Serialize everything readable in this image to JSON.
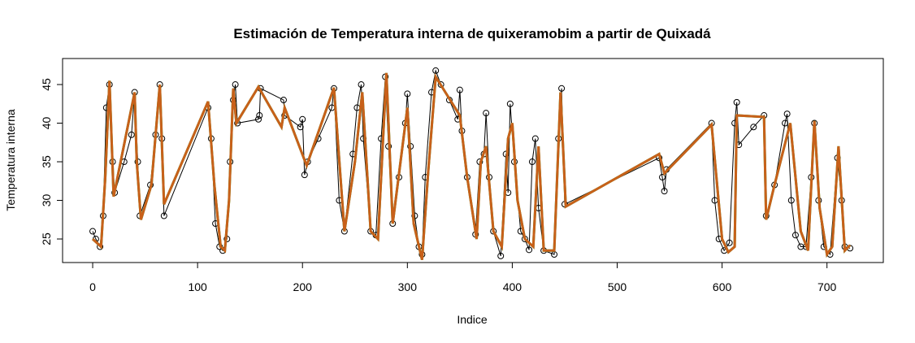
{
  "chart_data": {
    "type": "line",
    "title": "Estimación de Temperatura interna de quixeramobim a partir de Quixadá",
    "x_label": "Indice",
    "y_label": "Temperatura interna",
    "xlim": [
      -28.7,
      753.7
    ],
    "ylim": [
      21.95,
      48.37
    ],
    "xticks": [
      0,
      100,
      200,
      300,
      400,
      500,
      600,
      700
    ],
    "yticks": [
      25,
      30,
      35,
      40,
      45
    ],
    "series": [
      {
        "color": "#000000",
        "marker": "circle",
        "x": [
          0,
          3,
          7,
          10,
          13,
          16,
          19,
          21,
          30,
          37,
          40,
          43,
          45,
          55,
          60,
          64,
          66,
          68,
          110,
          113,
          117,
          121,
          124,
          128,
          131,
          134,
          136,
          138,
          158,
          159,
          160,
          182,
          183,
          198,
          200,
          202,
          205,
          215,
          228,
          230,
          235,
          240,
          248,
          252,
          256,
          258,
          265,
          270,
          275,
          279,
          282,
          286,
          292,
          298,
          300,
          303,
          307,
          311,
          314,
          317,
          323,
          327,
          332,
          340,
          348,
          350,
          352,
          357,
          365,
          369,
          373,
          375,
          378,
          382,
          389,
          394,
          396,
          398,
          402,
          408,
          412,
          416,
          419,
          422,
          425,
          430,
          440,
          444,
          447,
          450,
          540,
          543,
          545,
          547,
          590,
          593,
          597,
          602,
          607,
          612,
          614,
          616,
          630,
          640,
          642,
          650,
          660,
          662,
          666,
          670,
          675,
          680,
          685,
          688,
          692,
          697,
          703,
          710,
          714,
          717,
          722
        ],
        "values": [
          26,
          25,
          24,
          28,
          42,
          45,
          35,
          31,
          35,
          38.5,
          44,
          35,
          28,
          32,
          38.5,
          45,
          38,
          28,
          42,
          38,
          27,
          24,
          23.5,
          25,
          35,
          43,
          45,
          40,
          40.5,
          41,
          44.5,
          43,
          41,
          39.5,
          40.5,
          33.3,
          35,
          38,
          42,
          44.5,
          30,
          26,
          36,
          42,
          45,
          38,
          26,
          25.5,
          38,
          46,
          37,
          27,
          33,
          40,
          43.8,
          37,
          28,
          24,
          23,
          33,
          44,
          46.8,
          45,
          43,
          40.5,
          44.3,
          39,
          33,
          25.6,
          35,
          36,
          41.3,
          33,
          26,
          22.8,
          36,
          31,
          42.5,
          35,
          26,
          25,
          23.6,
          35,
          38,
          29,
          23.5,
          23,
          38,
          44.5,
          29.5,
          35.5,
          33,
          31.2,
          34,
          40,
          30,
          25,
          23.5,
          24.5,
          40,
          42.7,
          37.2,
          39.5,
          41,
          28,
          32,
          40,
          41.2,
          30,
          25.5,
          24,
          24,
          33,
          40,
          30,
          24,
          23,
          35.5,
          30,
          24,
          23.8
        ]
      },
      {
        "color": "#22bb22",
        "marker": "none",
        "x": [
          0,
          4,
          8,
          12,
          16,
          20,
          40,
          42,
          46,
          56,
          64,
          68,
          110,
          116,
          122,
          126,
          130,
          134,
          137,
          158,
          180,
          183,
          204,
          230,
          240,
          250,
          257,
          265,
          272,
          280,
          286,
          300,
          306,
          314,
          320,
          327,
          350,
          357,
          366,
          370,
          375,
          382,
          390,
          396,
          400,
          405,
          412,
          420,
          425,
          430,
          440,
          446,
          451,
          540,
          545,
          590,
          600,
          606,
          612,
          614,
          640,
          642,
          650,
          665,
          675,
          682,
          688,
          693,
          700,
          705,
          711,
          717,
          722
        ],
        "values": [
          25,
          24.5,
          24,
          33,
          45.5,
          30.5,
          44,
          35,
          27.5,
          32,
          45,
          29.5,
          42.8,
          32,
          24,
          23.5,
          30,
          44.5,
          40,
          44.7,
          39.5,
          42,
          34.5,
          44.6,
          26,
          35,
          44,
          26,
          25,
          46.5,
          27,
          42,
          27,
          22.3,
          34,
          46,
          41,
          33,
          25,
          35,
          37,
          26,
          24,
          38,
          40,
          30,
          25,
          24,
          37,
          23.5,
          23.5,
          44,
          29.2,
          36,
          33.5,
          39.8,
          25,
          23.3,
          24,
          41,
          40.8,
          27.5,
          32,
          40,
          26,
          23.5,
          40.3,
          29,
          23,
          24,
          37,
          23.5,
          24.2
        ]
      },
      {
        "color": "#c8601a",
        "marker": "none",
        "x": [
          0,
          4,
          8,
          12,
          16,
          20,
          40,
          42,
          46,
          56,
          64,
          68,
          110,
          116,
          122,
          126,
          130,
          134,
          137,
          158,
          180,
          183,
          204,
          230,
          240,
          250,
          257,
          265,
          272,
          280,
          286,
          300,
          306,
          314,
          320,
          327,
          350,
          357,
          366,
          370,
          375,
          382,
          390,
          396,
          400,
          405,
          412,
          420,
          425,
          430,
          440,
          446,
          451,
          540,
          545,
          590,
          600,
          606,
          612,
          614,
          640,
          642,
          650,
          665,
          675,
          682,
          688,
          693,
          700,
          705,
          711,
          717,
          722
        ],
        "values": [
          25,
          24.5,
          24,
          33,
          45.5,
          30.5,
          44,
          35,
          27.5,
          32,
          45,
          29.5,
          42.8,
          32,
          24,
          23.5,
          30,
          44.5,
          40,
          44.7,
          39.5,
          42,
          34.5,
          44.6,
          26,
          35,
          44,
          26,
          25,
          46.5,
          27,
          42,
          27,
          22.3,
          34,
          46,
          41,
          33,
          25,
          35,
          37,
          26,
          24,
          38,
          40,
          30,
          25,
          24,
          37,
          23.5,
          23.5,
          44,
          29.2,
          36,
          33.5,
          39.8,
          25,
          23.3,
          24,
          41,
          40.8,
          27.5,
          32,
          40,
          26,
          23.5,
          40.3,
          29,
          23,
          24,
          37,
          23.5,
          24.2
        ]
      }
    ]
  }
}
